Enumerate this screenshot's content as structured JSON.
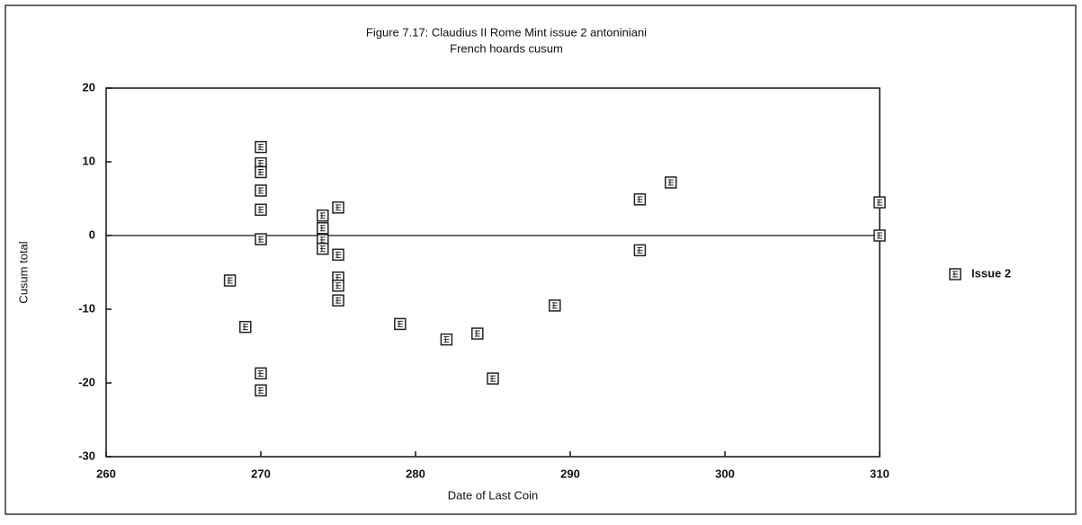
{
  "chart_data": {
    "type": "scatter",
    "title": "Figure 7.17: Claudius II Rome Mint issue 2 antoniniani",
    "subtitle": "French hoards cusum",
    "x_label": "Date of Last Coin",
    "y_label": "Cusum total",
    "series": [
      {
        "name": "Issue 2",
        "color": "#222222",
        "x": [
          268,
          269,
          270,
          270,
          270,
          270,
          270,
          270,
          270,
          270,
          274,
          274,
          274,
          274,
          275,
          275,
          275,
          275,
          275,
          279,
          282,
          284,
          285,
          289,
          294.5,
          294.5,
          296.5,
          310,
          310
        ],
        "values": [
          -6.1,
          -12.4,
          12,
          9.8,
          8.6,
          6.1,
          3.5,
          -0.5,
          -18.7,
          -21,
          -0.6,
          1,
          2.7,
          -1.8,
          3.8,
          -2.6,
          -5.7,
          -6.8,
          -8.8,
          -12,
          -14.1,
          -13.3,
          -19.4,
          -9.5,
          4.9,
          -2,
          7.2,
          4.5,
          0
        ]
      }
    ],
    "xlim": [
      260,
      310
    ],
    "xticks": [
      260,
      270,
      280,
      290,
      300,
      310
    ],
    "ylim": [
      -30,
      20
    ],
    "yticks": [
      -30,
      -20,
      -10,
      0,
      10,
      20
    ],
    "reference_line": 0,
    "legend": "right"
  }
}
